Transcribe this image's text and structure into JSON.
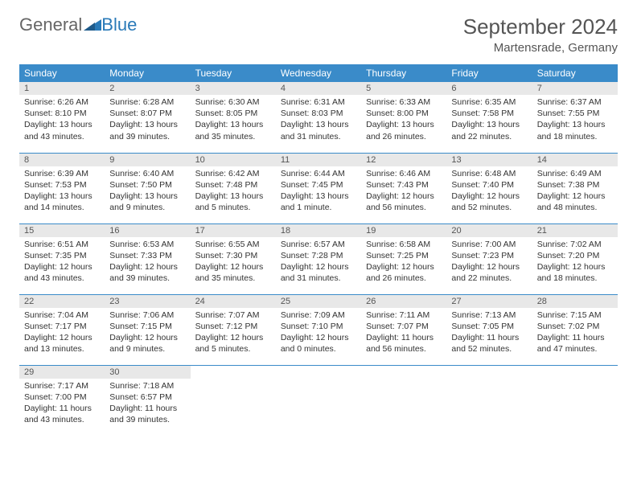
{
  "logo": {
    "gray": "General",
    "blue": "Blue"
  },
  "title": "September 2024",
  "location": "Martensrade, Germany",
  "colors": {
    "header_bg": "#3a8bc9",
    "header_text": "#ffffff",
    "daynum_bg": "#e8e8e8",
    "border": "#3a8bc9",
    "text": "#333333",
    "logo_blue": "#2a7ab8"
  },
  "weekdays": [
    "Sunday",
    "Monday",
    "Tuesday",
    "Wednesday",
    "Thursday",
    "Friday",
    "Saturday"
  ],
  "labels": {
    "sunrise": "Sunrise:",
    "sunset": "Sunset:",
    "daylight": "Daylight:"
  },
  "days": [
    {
      "n": "1",
      "sunrise": "6:26 AM",
      "sunset": "8:10 PM",
      "daylight": "13 hours and 43 minutes."
    },
    {
      "n": "2",
      "sunrise": "6:28 AM",
      "sunset": "8:07 PM",
      "daylight": "13 hours and 39 minutes."
    },
    {
      "n": "3",
      "sunrise": "6:30 AM",
      "sunset": "8:05 PM",
      "daylight": "13 hours and 35 minutes."
    },
    {
      "n": "4",
      "sunrise": "6:31 AM",
      "sunset": "8:03 PM",
      "daylight": "13 hours and 31 minutes."
    },
    {
      "n": "5",
      "sunrise": "6:33 AM",
      "sunset": "8:00 PM",
      "daylight": "13 hours and 26 minutes."
    },
    {
      "n": "6",
      "sunrise": "6:35 AM",
      "sunset": "7:58 PM",
      "daylight": "13 hours and 22 minutes."
    },
    {
      "n": "7",
      "sunrise": "6:37 AM",
      "sunset": "7:55 PM",
      "daylight": "13 hours and 18 minutes."
    },
    {
      "n": "8",
      "sunrise": "6:39 AM",
      "sunset": "7:53 PM",
      "daylight": "13 hours and 14 minutes."
    },
    {
      "n": "9",
      "sunrise": "6:40 AM",
      "sunset": "7:50 PM",
      "daylight": "13 hours and 9 minutes."
    },
    {
      "n": "10",
      "sunrise": "6:42 AM",
      "sunset": "7:48 PM",
      "daylight": "13 hours and 5 minutes."
    },
    {
      "n": "11",
      "sunrise": "6:44 AM",
      "sunset": "7:45 PM",
      "daylight": "13 hours and 1 minute."
    },
    {
      "n": "12",
      "sunrise": "6:46 AM",
      "sunset": "7:43 PM",
      "daylight": "12 hours and 56 minutes."
    },
    {
      "n": "13",
      "sunrise": "6:48 AM",
      "sunset": "7:40 PM",
      "daylight": "12 hours and 52 minutes."
    },
    {
      "n": "14",
      "sunrise": "6:49 AM",
      "sunset": "7:38 PM",
      "daylight": "12 hours and 48 minutes."
    },
    {
      "n": "15",
      "sunrise": "6:51 AM",
      "sunset": "7:35 PM",
      "daylight": "12 hours and 43 minutes."
    },
    {
      "n": "16",
      "sunrise": "6:53 AM",
      "sunset": "7:33 PM",
      "daylight": "12 hours and 39 minutes."
    },
    {
      "n": "17",
      "sunrise": "6:55 AM",
      "sunset": "7:30 PM",
      "daylight": "12 hours and 35 minutes."
    },
    {
      "n": "18",
      "sunrise": "6:57 AM",
      "sunset": "7:28 PM",
      "daylight": "12 hours and 31 minutes."
    },
    {
      "n": "19",
      "sunrise": "6:58 AM",
      "sunset": "7:25 PM",
      "daylight": "12 hours and 26 minutes."
    },
    {
      "n": "20",
      "sunrise": "7:00 AM",
      "sunset": "7:23 PM",
      "daylight": "12 hours and 22 minutes."
    },
    {
      "n": "21",
      "sunrise": "7:02 AM",
      "sunset": "7:20 PM",
      "daylight": "12 hours and 18 minutes."
    },
    {
      "n": "22",
      "sunrise": "7:04 AM",
      "sunset": "7:17 PM",
      "daylight": "12 hours and 13 minutes."
    },
    {
      "n": "23",
      "sunrise": "7:06 AM",
      "sunset": "7:15 PM",
      "daylight": "12 hours and 9 minutes."
    },
    {
      "n": "24",
      "sunrise": "7:07 AM",
      "sunset": "7:12 PM",
      "daylight": "12 hours and 5 minutes."
    },
    {
      "n": "25",
      "sunrise": "7:09 AM",
      "sunset": "7:10 PM",
      "daylight": "12 hours and 0 minutes."
    },
    {
      "n": "26",
      "sunrise": "7:11 AM",
      "sunset": "7:07 PM",
      "daylight": "11 hours and 56 minutes."
    },
    {
      "n": "27",
      "sunrise": "7:13 AM",
      "sunset": "7:05 PM",
      "daylight": "11 hours and 52 minutes."
    },
    {
      "n": "28",
      "sunrise": "7:15 AM",
      "sunset": "7:02 PM",
      "daylight": "11 hours and 47 minutes."
    },
    {
      "n": "29",
      "sunrise": "7:17 AM",
      "sunset": "7:00 PM",
      "daylight": "11 hours and 43 minutes."
    },
    {
      "n": "30",
      "sunrise": "7:18 AM",
      "sunset": "6:57 PM",
      "daylight": "11 hours and 39 minutes."
    }
  ]
}
